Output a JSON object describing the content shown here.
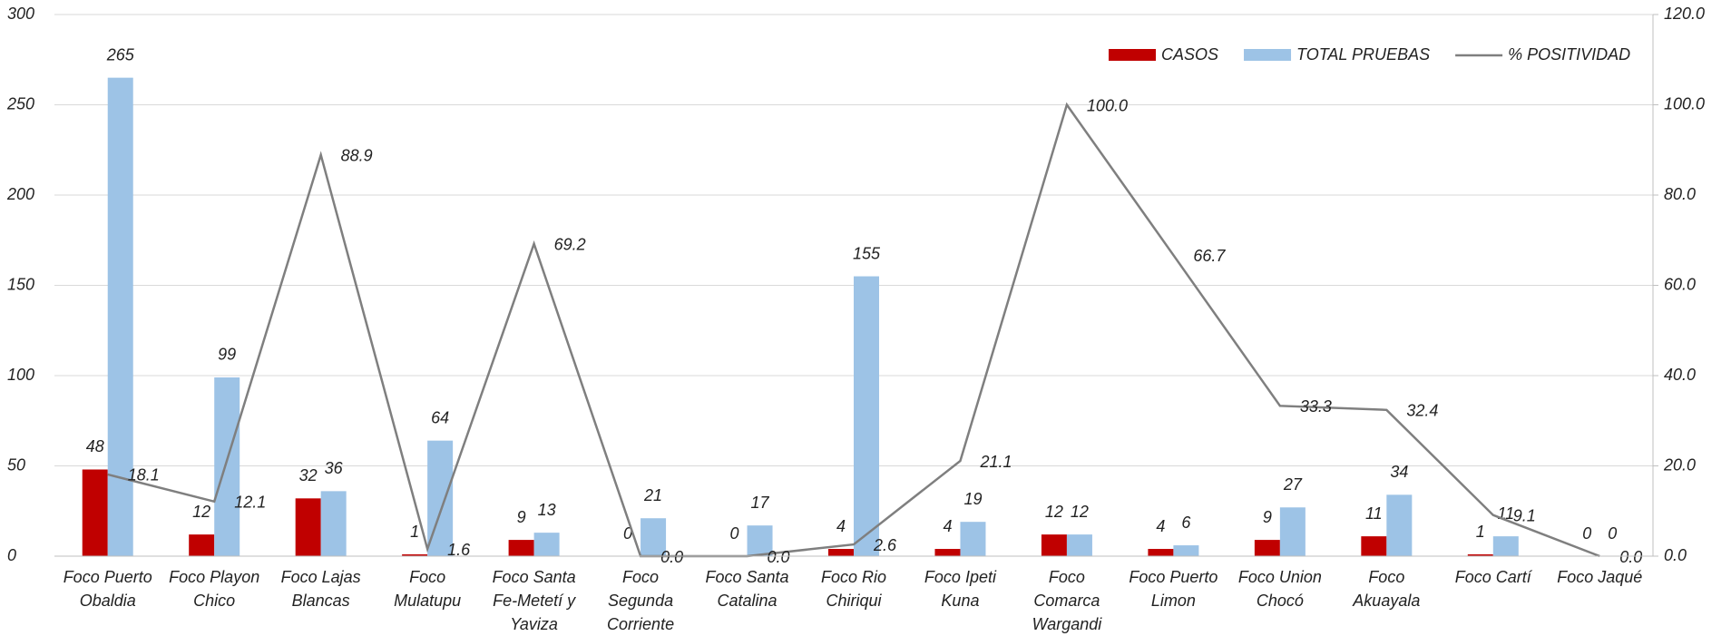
{
  "chart_data": {
    "type": "bar-line",
    "categories": [
      "Foco Puerto Obaldia",
      "Foco Playon Chico",
      "Foco Lajas Blancas",
      "Foco Mulatupu",
      "Foco Santa Fe-Metetí y Yaviza",
      "Foco Segunda Corriente",
      "Foco Santa Catalina",
      "Foco Rio Chiriqui",
      "Foco Ipeti Kuna",
      "Foco Comarca Wargandi",
      "Foco Puerto Limon",
      "Foco Union Chocó",
      "Foco Akuayala",
      "Foco Cartí",
      "Foco Jaqué"
    ],
    "series": [
      {
        "name": "CASOS",
        "color": "#c00000",
        "kind": "bar",
        "values": [
          48,
          12,
          32,
          1,
          9,
          0,
          0,
          4,
          4,
          12,
          4,
          9,
          11,
          1,
          0
        ]
      },
      {
        "name": "TOTAL PRUEBAS",
        "color": "#9dc3e6",
        "kind": "bar",
        "values": [
          265,
          99,
          36,
          64,
          13,
          21,
          17,
          155,
          19,
          12,
          6,
          27,
          34,
          11,
          0
        ]
      },
      {
        "name": "% POSITIVIDAD",
        "color": "#7f7f7f",
        "kind": "line",
        "axis": "y2",
        "values": [
          18.1,
          12.1,
          88.9,
          1.6,
          69.2,
          0.0,
          0.0,
          2.6,
          21.1,
          100.0,
          66.7,
          33.3,
          32.4,
          9.1,
          0.0
        ],
        "value_labels": [
          "18.1",
          "12.1",
          "88.9",
          "1.6",
          "69.2",
          "0.0",
          "0.0",
          "2.6",
          "21.1",
          "100.0",
          "66.7",
          "33.3",
          "32.4",
          "9.1",
          "0.0"
        ]
      }
    ],
    "ylim": [
      0,
      300
    ],
    "yticks": [
      0,
      50,
      100,
      150,
      200,
      250,
      300
    ],
    "y2lim": [
      0,
      120
    ],
    "y2ticks": [
      {
        "value": 0,
        "label": "0.0"
      },
      {
        "value": 20,
        "label": "20.0"
      },
      {
        "value": 40,
        "label": "40.0"
      },
      {
        "value": 60,
        "label": "60.0"
      },
      {
        "value": 80,
        "label": "80.0"
      },
      {
        "value": 100,
        "label": "100.0"
      },
      {
        "value": 120,
        "label": "120.0"
      }
    ],
    "grid": true,
    "legend": "top-right"
  }
}
